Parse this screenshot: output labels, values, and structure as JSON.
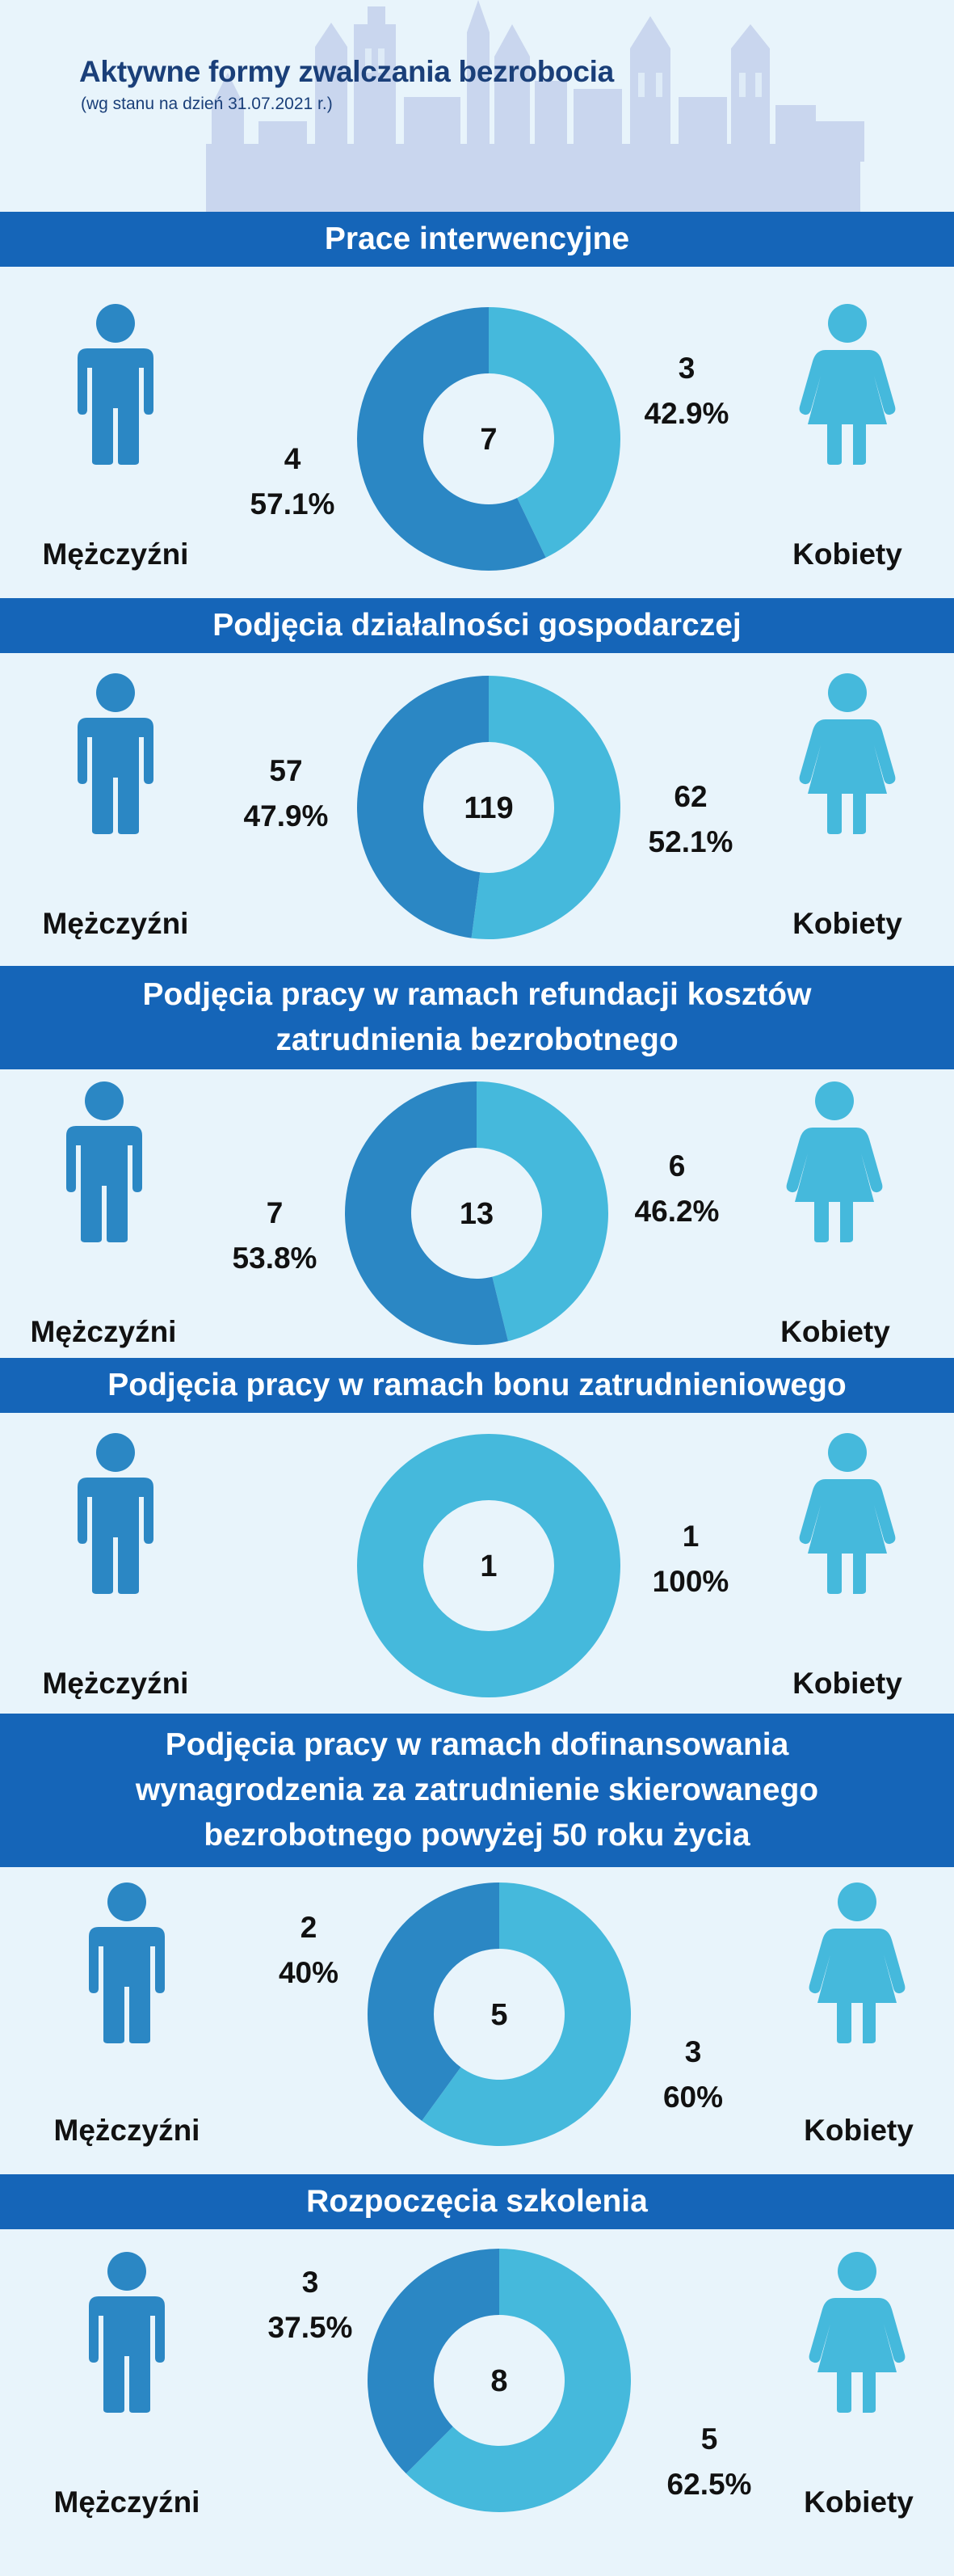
{
  "header": {
    "title": "Aktywne formy zwalczania bezrobocia",
    "subtitle": "(wg stanu na dzień 31.07.2021 r.)"
  },
  "labels": {
    "men": "Mężczyźni",
    "women": "Kobiety"
  },
  "colors": {
    "banner": "#1565b8",
    "men": "#2b87c4",
    "women": "#45b9dc",
    "background": "#e8f4fb",
    "title": "#1a3f79"
  },
  "chart_data": [
    {
      "type": "pie",
      "title": "Prace interwencyjne",
      "total": "7",
      "categories": [
        "Mężczyźni",
        "Kobiety"
      ],
      "values": [
        4,
        3
      ],
      "men": {
        "count": "4",
        "percent": "57.1%"
      },
      "women": {
        "count": "3",
        "percent": "42.9%"
      }
    },
    {
      "type": "pie",
      "title": "Podjęcia działalności gospodarczej",
      "total": "119",
      "categories": [
        "Mężczyźni",
        "Kobiety"
      ],
      "values": [
        57,
        62
      ],
      "men": {
        "count": "57",
        "percent": "47.9%"
      },
      "women": {
        "count": "62",
        "percent": "52.1%"
      }
    },
    {
      "type": "pie",
      "title": "Podjęcia pracy w ramach refundacji kosztów zatrudnienia bezrobotnego",
      "total": "13",
      "categories": [
        "Mężczyźni",
        "Kobiety"
      ],
      "values": [
        7,
        6
      ],
      "men": {
        "count": "7",
        "percent": "53.8%"
      },
      "women": {
        "count": "6",
        "percent": "46.2%"
      }
    },
    {
      "type": "pie",
      "title": "Podjęcia pracy w ramach bonu zatrudnieniowego",
      "total": "1",
      "categories": [
        "Mężczyźni",
        "Kobiety"
      ],
      "values": [
        0,
        1
      ],
      "men": {
        "count": "",
        "percent": ""
      },
      "women": {
        "count": "1",
        "percent": "100%"
      }
    },
    {
      "type": "pie",
      "title": "Podjęcia pracy w ramach dofinansowania wynagrodzenia za zatrudnienie skierowanego bezrobotnego powyżej 50 roku życia",
      "total": "5",
      "categories": [
        "Mężczyźni",
        "Kobiety"
      ],
      "values": [
        2,
        3
      ],
      "men": {
        "count": "2",
        "percent": "40%"
      },
      "women": {
        "count": "3",
        "percent": "60%"
      }
    },
    {
      "type": "pie",
      "title": "Rozpoczęcia szkolenia",
      "total": "8",
      "categories": [
        "Mężczyźni",
        "Kobiety"
      ],
      "values": [
        3,
        5
      ],
      "men": {
        "count": "3",
        "percent": "37.5%"
      },
      "women": {
        "count": "5",
        "percent": "62.5%"
      }
    }
  ]
}
